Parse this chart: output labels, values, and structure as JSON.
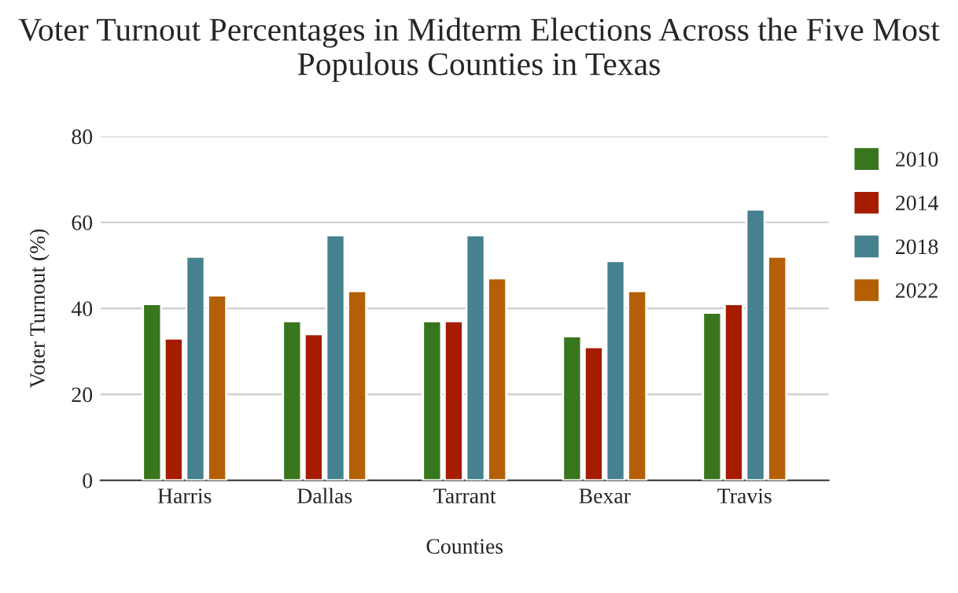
{
  "chart_data": {
    "type": "bar",
    "title": "Voter Turnout Percentages in Midterm Elections Across the Five Most Populous Counties in Texas",
    "xlabel": "Counties",
    "ylabel": "Voter Turnout (%)",
    "categories": [
      "Harris",
      "Dallas",
      "Tarrant",
      "Bexar",
      "Travis"
    ],
    "series": [
      {
        "name": "2010",
        "color": "#38761d",
        "values": [
          41,
          37,
          37,
          33.5,
          39
        ]
      },
      {
        "name": "2014",
        "color": "#a61c00",
        "values": [
          33,
          34,
          37,
          31,
          41
        ]
      },
      {
        "name": "2018",
        "color": "#45818e",
        "values": [
          52,
          57,
          57,
          51,
          63
        ]
      },
      {
        "name": "2022",
        "color": "#b45f06",
        "values": [
          43,
          44,
          47,
          44,
          52
        ]
      }
    ],
    "ylim": [
      0,
      80
    ],
    "yticks": [
      0,
      20,
      40,
      60,
      80
    ],
    "grid": "y",
    "legend": "top right"
  }
}
